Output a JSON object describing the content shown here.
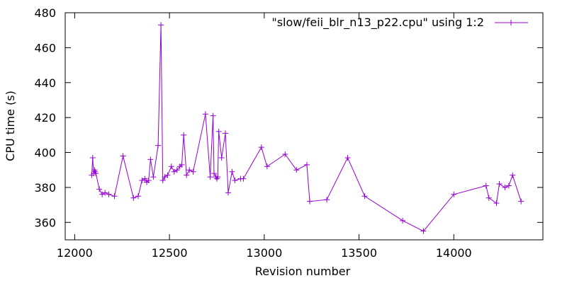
{
  "chart_data": {
    "type": "line",
    "title": "",
    "xlabel": "Revision number",
    "ylabel": "CPU time (s)",
    "xlim": [
      11950,
      14470
    ],
    "ylim": [
      350,
      480
    ],
    "xticks": [
      12000,
      12500,
      13000,
      13500,
      14000
    ],
    "yticks": [
      360,
      380,
      400,
      420,
      440,
      460,
      480
    ],
    "grid": false,
    "legend_position": "top-right",
    "series": [
      {
        "name": "\"slow/feii_blr_n13_p22.cpu\" using 1:2",
        "color": "#9400d3",
        "marker": "plus",
        "x": [
          12090,
          12095,
          12100,
          12105,
          12108,
          12112,
          12130,
          12145,
          12160,
          12180,
          12210,
          12255,
          12310,
          12335,
          12355,
          12370,
          12380,
          12390,
          12400,
          12415,
          12440,
          12455,
          12465,
          12475,
          12490,
          12510,
          12525,
          12540,
          12555,
          12565,
          12575,
          12590,
          12605,
          12625,
          12690,
          12715,
          12730,
          12735,
          12745,
          12750,
          12755,
          12760,
          12775,
          12795,
          12810,
          12830,
          12845,
          12875,
          12890,
          12985,
          13015,
          13110,
          13170,
          13225,
          13240,
          13330,
          13440,
          13530,
          13730,
          13840,
          14000,
          14170,
          14185,
          14225,
          14240,
          14270,
          14290,
          14310,
          14355
        ],
        "y": [
          387,
          397,
          388,
          390,
          389,
          388,
          379,
          376,
          377,
          376,
          375,
          398,
          374,
          375,
          384,
          385,
          383,
          384,
          396,
          386,
          404,
          473,
          384,
          386,
          387,
          392,
          389,
          390,
          392,
          393,
          410,
          387,
          390,
          389,
          422,
          386,
          421,
          388,
          386,
          385,
          386,
          412,
          397,
          411,
          377,
          389,
          384,
          385,
          385,
          403,
          392,
          399,
          390,
          393,
          372,
          373,
          397,
          375,
          361,
          355,
          376,
          381,
          374,
          371,
          382,
          380,
          381,
          387,
          372
        ]
      }
    ]
  }
}
